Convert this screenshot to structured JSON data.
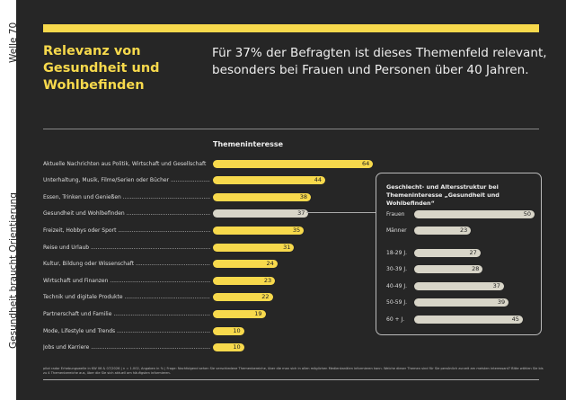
{
  "side": {
    "top": "Welle 70",
    "bottom": "Gesundheit braucht Orientierung"
  },
  "title": "Relevanz von Gesundheit und Wohlbefinden",
  "lead": "Für 37% der Befragten ist dieses Themenfeld relevant, besonders bei Frauen und Personen über 40 Jahren.",
  "footnote": "pilot radar Erhebungswelle in KW 06 & 07/2026 | n = 1.002, Angaben in % | Frage: Nachfolgend sehen Sie verschiedene Themenbereiche, über die man sich in allen möglichen Medienkanälen informieren kann. Welche dieser Themen sind für Sie persönlich zurzeit am meisten interessant? Bitte wählen Sie bis zu 4 Themenbereiche aus, über die Sie sich aktuell am häufigsten informieren.",
  "colors": {
    "accent": "#f7d94c",
    "highlight": "#d8d5c8",
    "background": "#262626"
  },
  "chart_data": [
    {
      "type": "bar",
      "orientation": "horizontal",
      "title": "Themeninteresse",
      "unit": "%",
      "categories": [
        "Aktuelle Nachrichten aus Politik, Wirtschaft und Gesellschaft",
        "Unterhaltung, Musik, Filme/Serien oder Bücher",
        "Essen, Trinken und Genießen",
        "Gesundheit und Wohlbefinden",
        "Freizeit, Hobbys oder Sport",
        "Reise und Urlaub",
        "Kultur, Bildung oder Wissenschaft",
        "Wirtschaft und Finanzen",
        "Technik und digitale Produkte",
        "Partnerschaft und Familie",
        "Mode, Lifestyle und Trends",
        "Jobs und Karriere"
      ],
      "values": [
        64,
        44,
        38,
        37,
        35,
        31,
        24,
        23,
        22,
        19,
        10,
        10
      ],
      "highlight": "Gesundheit und Wohlbefinden"
    },
    {
      "type": "bar",
      "orientation": "horizontal",
      "title": "Geschlecht- und Altersstruktur bei Themeninteresse „Gesundheit und Wohlbefinden“",
      "unit": "%",
      "categories": [
        "Frauen",
        "Männer",
        "18-29 J.",
        "30-39 J.",
        "40-49 J.",
        "50-59 J.",
        "60 + J."
      ],
      "values": [
        50,
        23,
        27,
        28,
        37,
        39,
        45
      ]
    }
  ]
}
